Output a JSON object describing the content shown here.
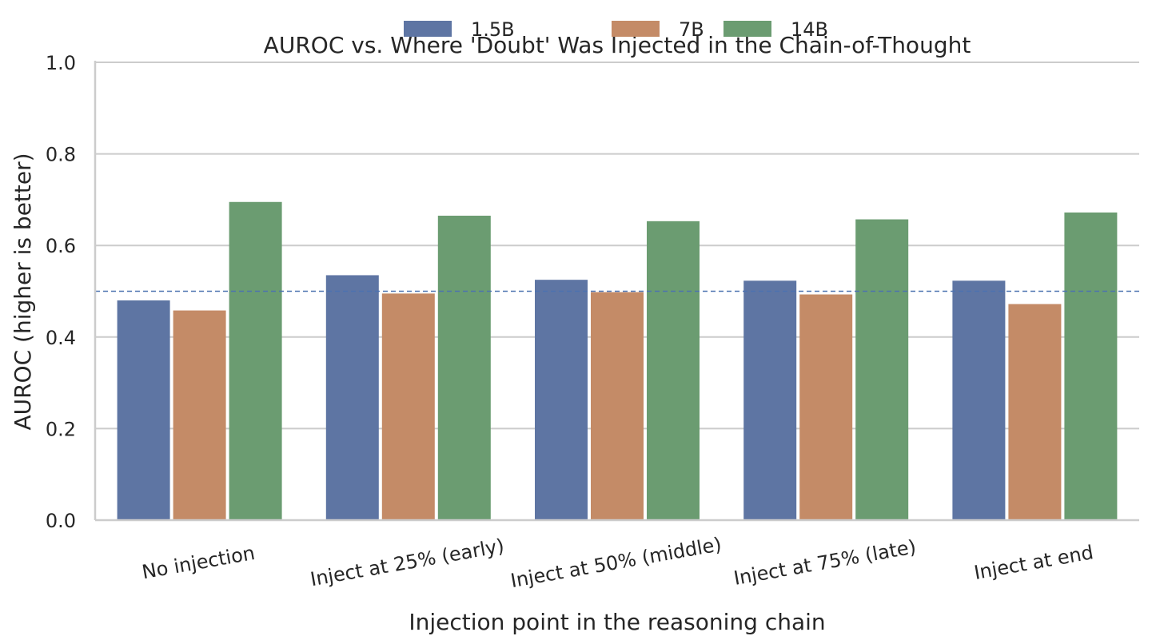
{
  "chart_data": {
    "type": "bar",
    "title": "AUROC vs. Where 'Doubt' Was Injected in the Chain-of-Thought",
    "xlabel": "Injection point in the reasoning chain",
    "ylabel": "AUROC (higher is better)",
    "ylim": [
      0,
      1.0
    ],
    "yticks": [
      "0.0",
      "0.2",
      "0.4",
      "0.6",
      "0.8",
      "1.0"
    ],
    "grid": "horizontal",
    "legend_position": "top-center",
    "reference_line": {
      "y": 0.5,
      "style": "dashed",
      "color": "#4c72b0"
    },
    "categories": [
      "No injection",
      "Inject at 25% (early)",
      "Inject at 50% (middle)",
      "Inject at 75% (late)",
      "Inject at end"
    ],
    "series": [
      {
        "name": "1.5B",
        "color": "#5e75a3",
        "values": [
          0.48,
          0.535,
          0.525,
          0.523,
          0.523
        ]
      },
      {
        "name": "7B",
        "color": "#c48b67",
        "values": [
          0.458,
          0.495,
          0.498,
          0.493,
          0.472
        ]
      },
      {
        "name": "14B",
        "color": "#6b9c71",
        "values": [
          0.695,
          0.665,
          0.653,
          0.657,
          0.672
        ]
      }
    ]
  }
}
